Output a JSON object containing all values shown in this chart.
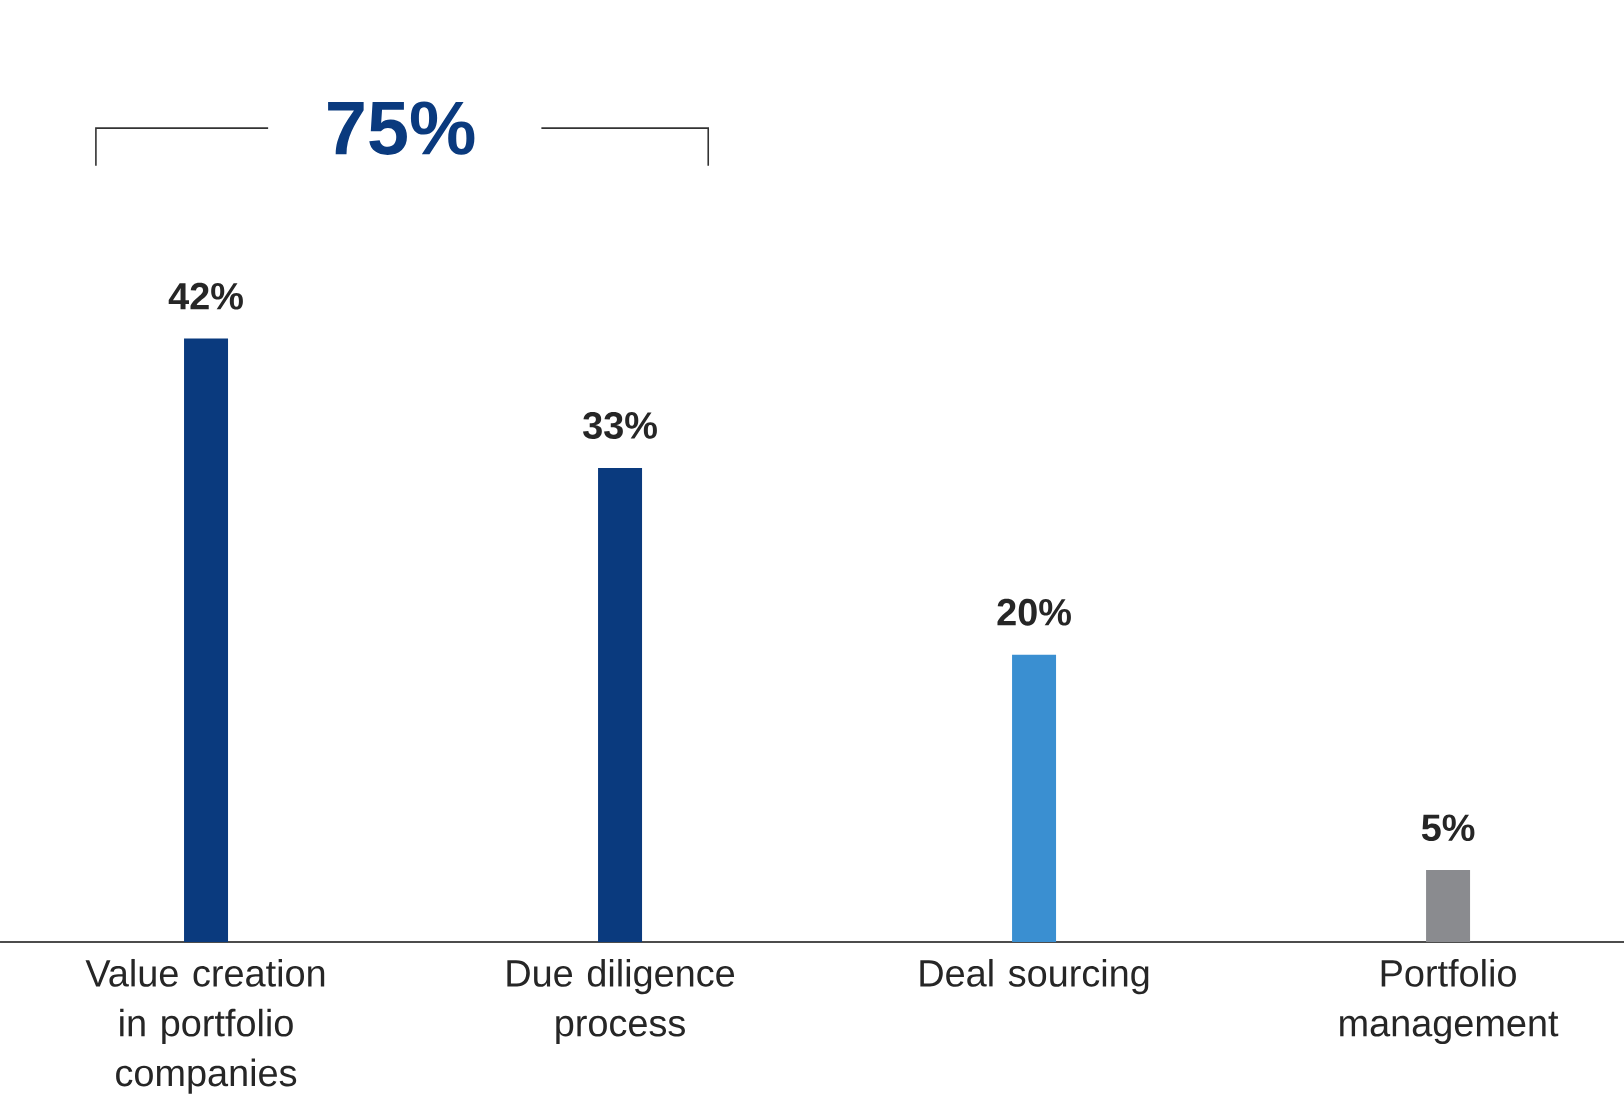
{
  "chart_data": {
    "type": "bar",
    "categories": [
      "Value creation in portfolio companies",
      "Due diligence process",
      "Deal sourcing",
      "Portfolio management"
    ],
    "values": [
      42,
      33,
      20,
      5
    ],
    "colors": [
      "#0a3a7e",
      "#0a3a7e",
      "#3a8fd1",
      "#8a8b8f"
    ],
    "value_labels": [
      "42%",
      "33%",
      "20%",
      "5%"
    ],
    "annotations": [
      "75%"
    ]
  }
}
